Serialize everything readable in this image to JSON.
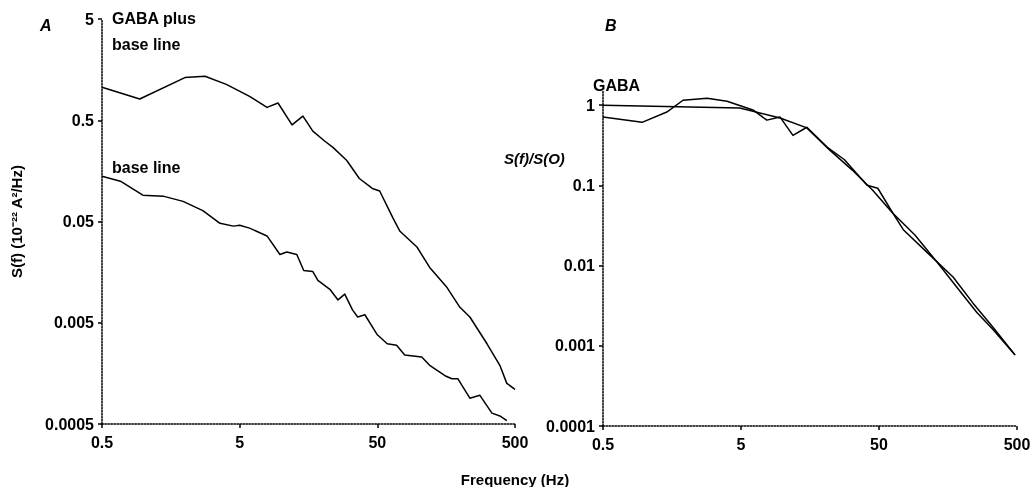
{
  "chart_data": [
    {
      "type": "line",
      "title": "A",
      "xlabel": "Frequency (Hz)",
      "ylabel": "S(f) (10⁻²² A²/Hz)",
      "log": "xy",
      "grid": false,
      "legend": false,
      "marker": "none",
      "line_style": "solid",
      "xlim": [
        0.5,
        500
      ],
      "ylim": [
        0.0005,
        5
      ],
      "xticks": [
        0.5,
        5,
        50,
        500
      ],
      "yticks": [
        0.0005,
        0.005,
        0.05,
        0.5,
        5
      ],
      "series": [
        {
          "name": "GABA plus base line",
          "color": "#000000",
          "x": [
            0.5,
            0.94,
            2.0,
            2.8,
            4.0,
            5.9,
            7.9,
            9.5,
            12,
            14.4,
            17,
            20.8,
            23.8,
            30,
            37,
            46,
            52,
            65,
            73,
            97,
            120,
            160,
            199,
            235,
            313,
            388,
            436,
            500
          ],
          "values": [
            1.06,
            0.81,
            1.32,
            1.36,
            1.13,
            0.86,
            0.67,
            0.74,
            0.45,
            0.55,
            0.39,
            0.31,
            0.27,
            0.2,
            0.133,
            0.106,
            0.1,
            0.054,
            0.04,
            0.028,
            0.0176,
            0.0112,
            0.0071,
            0.0057,
            0.0031,
            0.0019,
            0.00126,
            0.0011
          ]
        },
        {
          "name": "base line",
          "color": "#000000",
          "x": [
            0.5,
            0.68,
            0.99,
            1.39,
            1.94,
            2.7,
            3.6,
            4.5,
            5.0,
            5.9,
            7.9,
            9.8,
            11,
            13,
            14.6,
            17,
            18.5,
            22.6,
            25.9,
            29,
            33,
            36,
            40.6,
            50,
            59,
            69,
            79,
            105,
            120,
            155,
            174,
            192,
            235,
            278,
            340,
            388,
            436
          ],
          "values": [
            0.14,
            0.125,
            0.091,
            0.089,
            0.079,
            0.064,
            0.048,
            0.045,
            0.046,
            0.043,
            0.036,
            0.0236,
            0.025,
            0.0236,
            0.0164,
            0.016,
            0.0131,
            0.0107,
            0.0084,
            0.0096,
            0.0067,
            0.0057,
            0.006,
            0.0038,
            0.0031,
            0.003,
            0.0024,
            0.0023,
            0.0019,
            0.0015,
            0.0014,
            0.0014,
            0.0009,
            0.00096,
            0.00064,
            0.0006,
            0.00054
          ]
        }
      ]
    },
    {
      "type": "line",
      "title": "B",
      "ylabel": "S(f)/S(O)",
      "log": "xy",
      "grid": false,
      "legend": false,
      "marker": "none",
      "line_style": "solid",
      "xlim": [
        0.5,
        500
      ],
      "ylim": [
        0.0001,
        1.5
      ],
      "xticks": [
        0.5,
        5,
        50,
        500
      ],
      "yticks": [
        0.0001,
        0.001,
        0.01,
        0.1,
        1
      ],
      "series": [
        {
          "name": "GABA",
          "color": "#000000",
          "x": [
            0.5,
            0.96,
            1.45,
            1.9,
            2.84,
            3.96,
            6.1,
            7.7,
            9.6,
            11.9,
            15,
            21,
            28,
            41,
            49,
            63,
            91,
            132,
            203,
            256,
            335,
            484
          ],
          "values": [
            0.71,
            0.61,
            0.82,
            1.15,
            1.22,
            1.12,
            0.87,
            0.65,
            0.71,
            0.42,
            0.53,
            0.3,
            0.21,
            0.1,
            0.092,
            0.045,
            0.024,
            0.011,
            0.0043,
            0.0026,
            0.0016,
            0.00077
          ]
        },
        {
          "color": "#000000",
          "x": [
            0.5,
            4.9,
            9.6,
            15,
            22,
            32,
            45,
            63,
            75,
            117,
            172,
            240,
            335,
            484
          ],
          "values": [
            1,
            0.92,
            0.69,
            0.52,
            0.275,
            0.155,
            0.087,
            0.045,
            0.028,
            0.0135,
            0.0072,
            0.0034,
            0.0017,
            0.00077
          ]
        }
      ]
    }
  ]
}
